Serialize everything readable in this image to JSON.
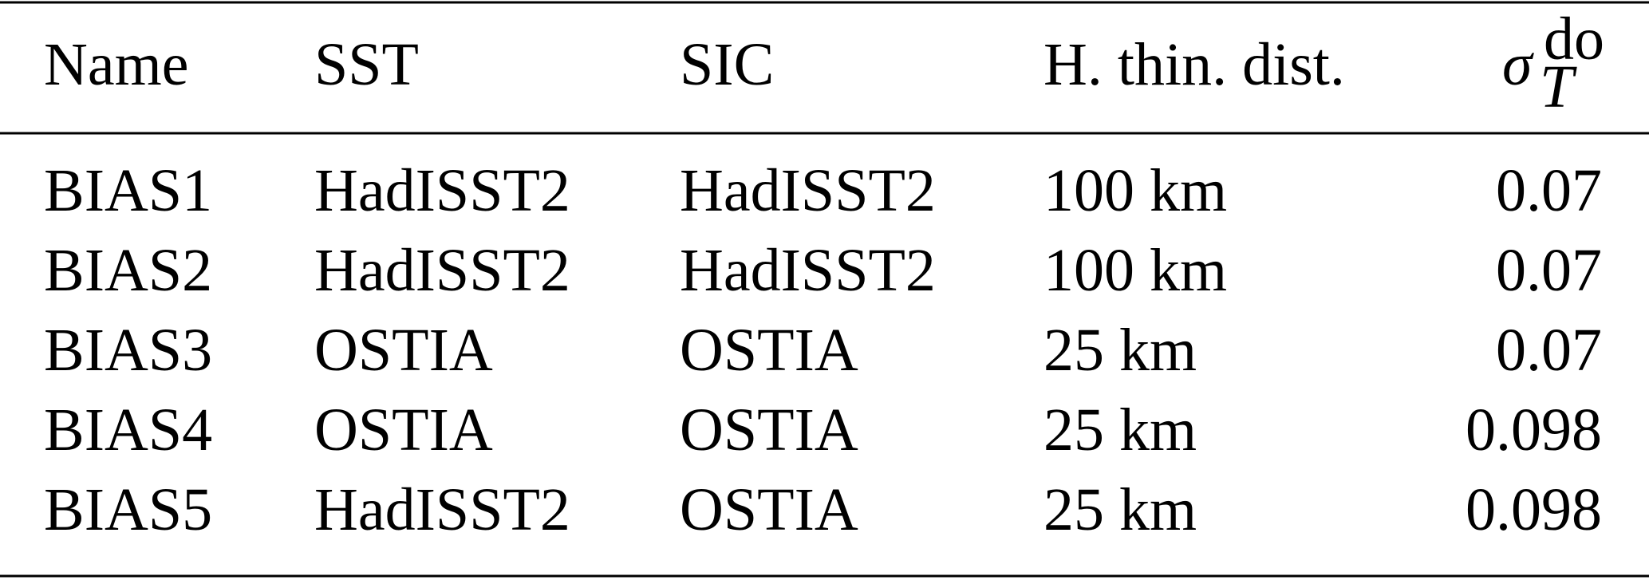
{
  "table": {
    "header": [
      "Name",
      "SST",
      "SIC",
      "H. thin. dist.",
      {
        "symbol": "σ",
        "subscript": "T",
        "superscript": "do"
      }
    ],
    "rows": [
      [
        "BIAS1",
        "HadISST2",
        "HadISST2",
        "100 km",
        0.07
      ],
      [
        "BIAS2",
        "HadISST2",
        "HadISST2",
        "100 km",
        0.07
      ],
      [
        "BIAS3",
        "OSTIA",
        "OSTIA",
        "25 km",
        0.07
      ],
      [
        "BIAS4",
        "OSTIA",
        "OSTIA",
        "25 km",
        0.098
      ],
      [
        "BIAS5",
        "HadISST2",
        "OSTIA",
        "25 km",
        0.098
      ]
    ]
  }
}
